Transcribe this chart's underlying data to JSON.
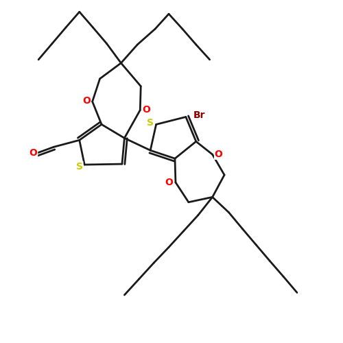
{
  "background": "#ffffff",
  "bond_color": "#1a1a1a",
  "bond_width": 2.0,
  "atom_colors": {
    "S": "#cccc00",
    "O": "#ff0000",
    "Br": "#8b0000",
    "C": "#1a1a1a"
  },
  "font_size_atom": 10,
  "figsize": [
    5,
    5
  ],
  "dpi": 100
}
